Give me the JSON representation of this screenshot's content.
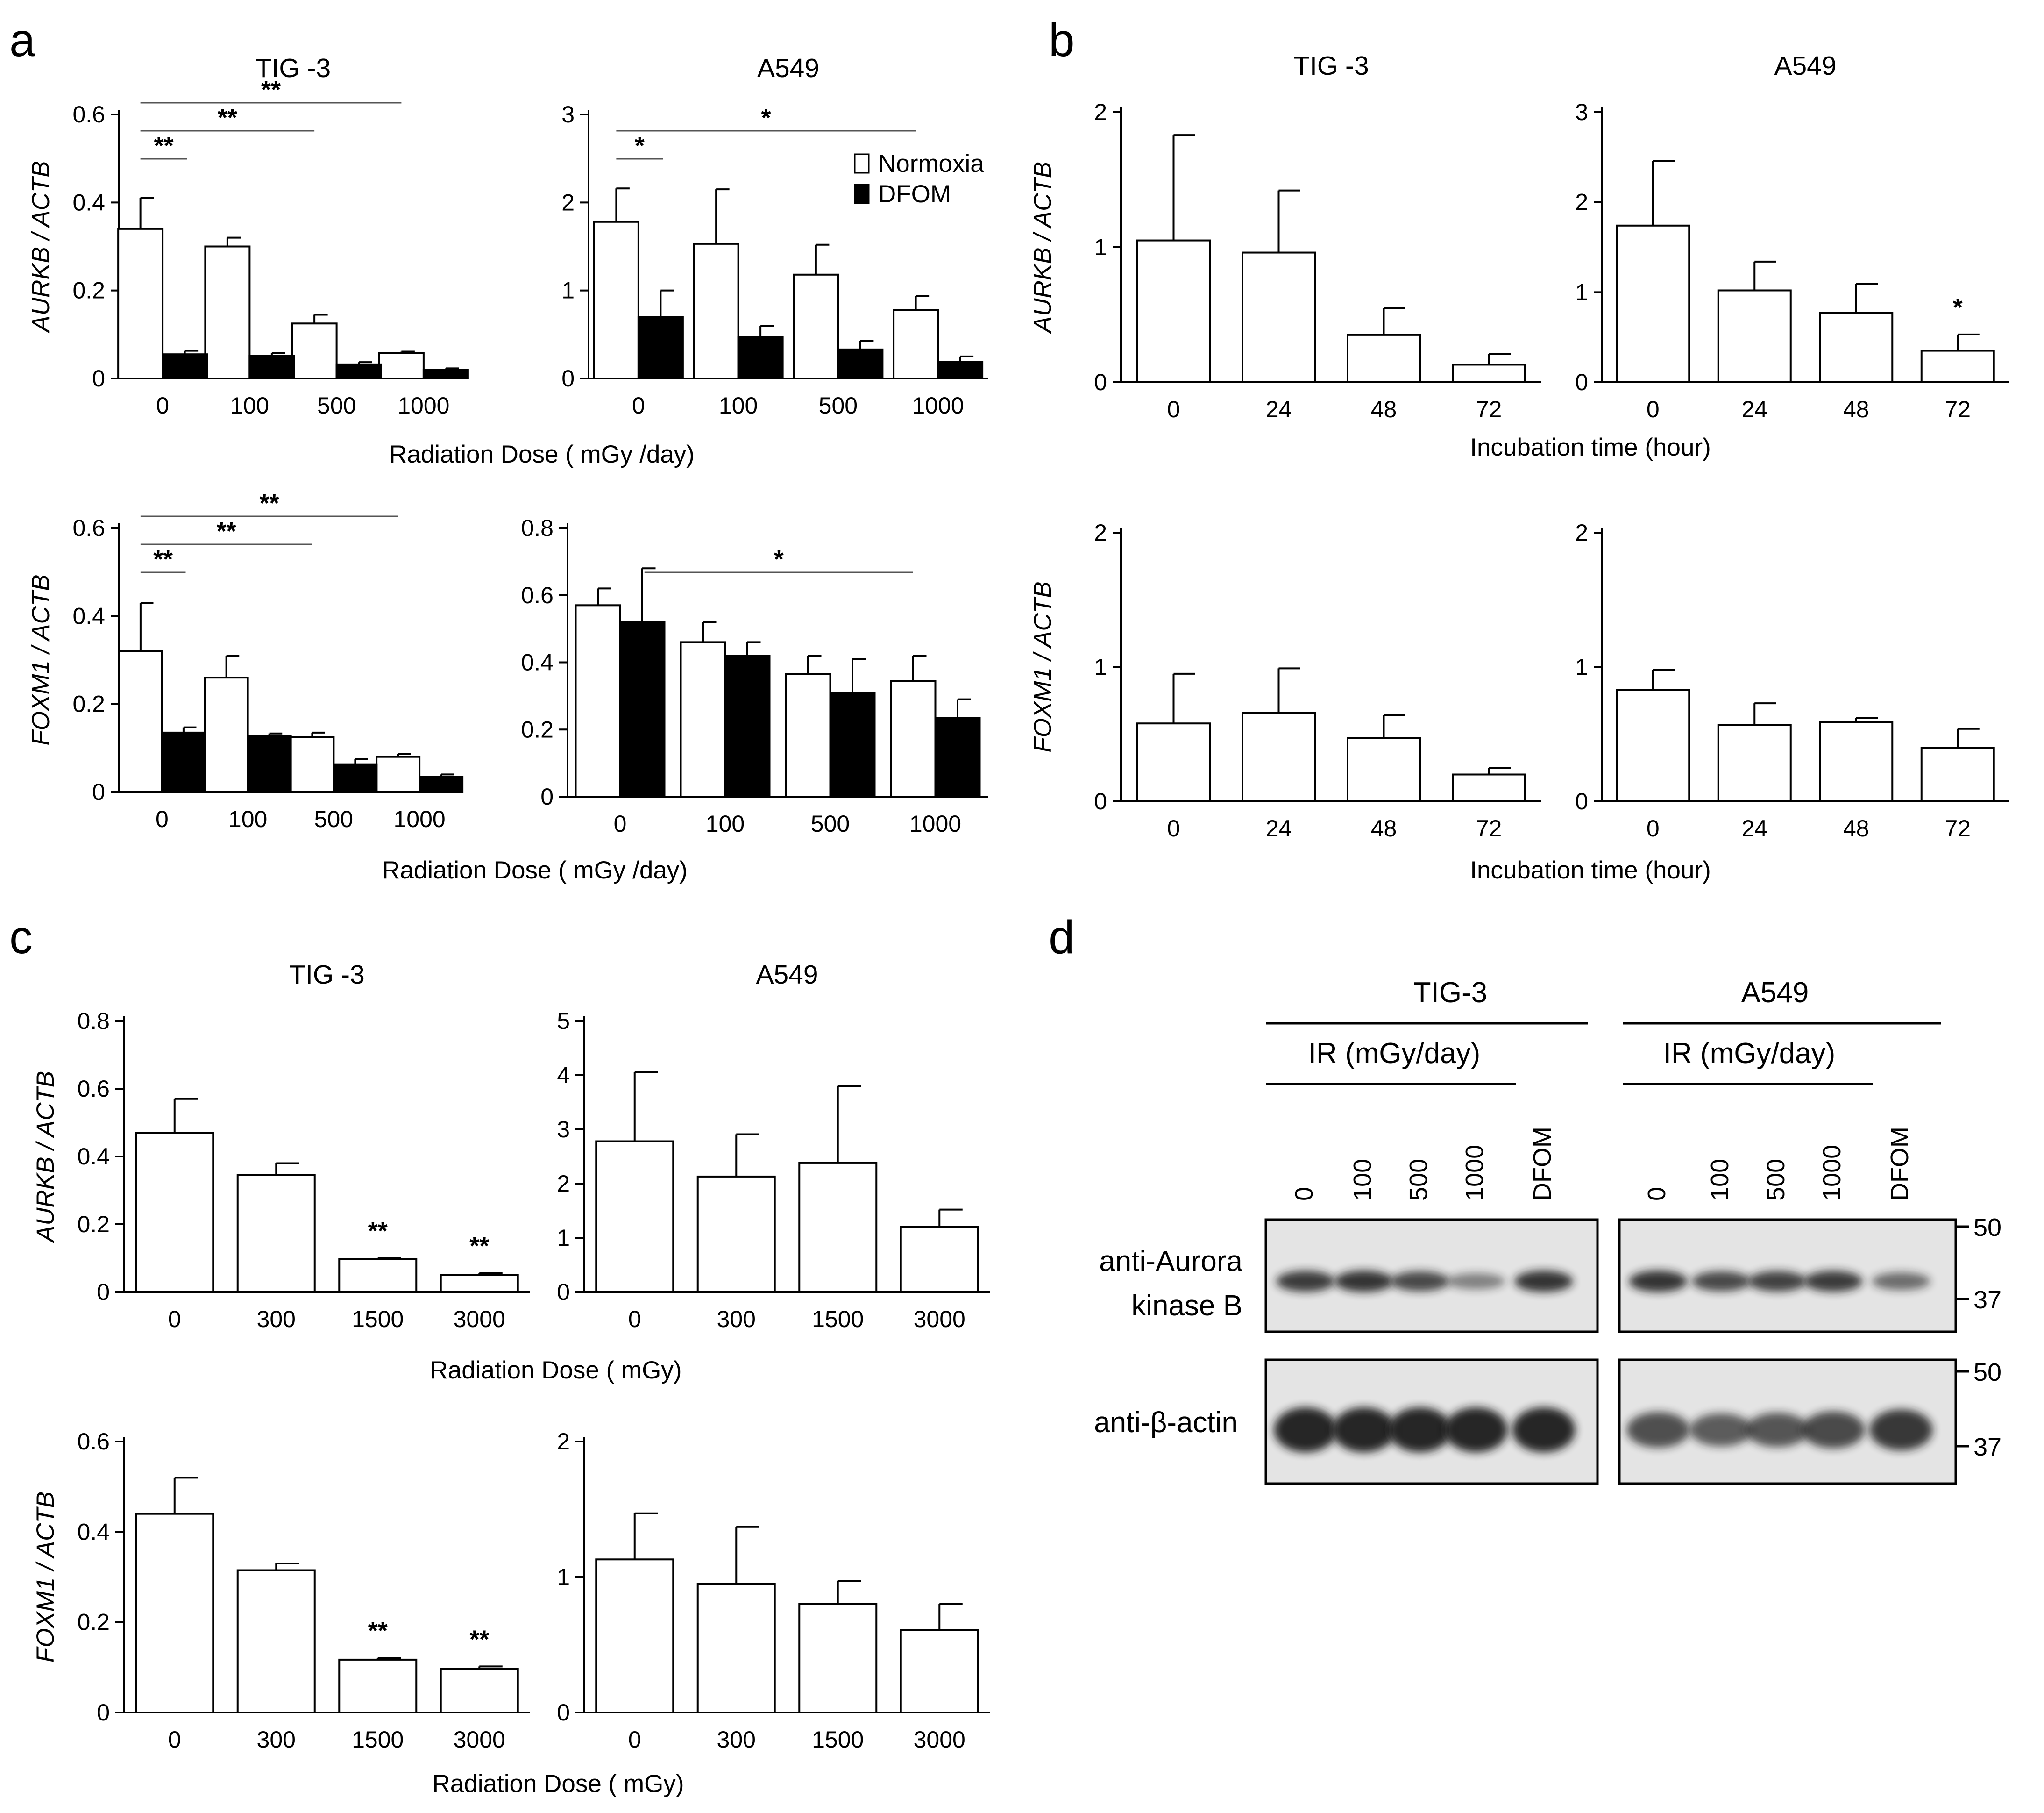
{
  "panel_labels": [
    "a",
    "b",
    "c",
    "d"
  ],
  "legend": {
    "normoxia": "Normoxia",
    "dfom": "DFOM"
  },
  "colors": {
    "normoxia": "#ffffff",
    "dfom": "#000000",
    "axis": "#000000",
    "sig_line": "#555555",
    "blot_bg": "#e4e4e4",
    "band": "#1a1a1a"
  },
  "chart_data": [
    {
      "id": "a-aurkb-tig3",
      "panel": "a",
      "type": "bar",
      "title": "TIG -3",
      "ylabel": "AURKB / ACTB",
      "xlabel": "",
      "ylim": [
        0,
        0.6
      ],
      "yticks": [
        "0",
        "0.2",
        "0.4",
        "0.6"
      ],
      "categories": [
        "0",
        "100",
        "500",
        "1000"
      ],
      "series": [
        {
          "name": "Normoxia",
          "values": [
            0.34,
            0.3,
            0.125,
            0.058
          ],
          "errors": [
            0.07,
            0.02,
            0.02,
            0.003
          ]
        },
        {
          "name": "DFOM",
          "values": [
            0.055,
            0.052,
            0.032,
            0.02
          ],
          "errors": [
            0.008,
            0.006,
            0.005,
            0.003
          ]
        }
      ],
      "significance": [
        {
          "from": 0,
          "to": 0.3,
          "label": "**"
        },
        {
          "from": 0,
          "to": 2,
          "label": "**"
        },
        {
          "from": 0,
          "to": 3,
          "label": "**"
        }
      ]
    },
    {
      "id": "a-aurkb-a549",
      "panel": "a",
      "type": "bar",
      "title": "A549",
      "ylabel": "",
      "xlabel": "",
      "ylim": [
        0,
        3
      ],
      "yticks": [
        "0",
        "1",
        "2",
        "3"
      ],
      "categories": [
        "0",
        "100",
        "500",
        "1000"
      ],
      "series": [
        {
          "name": "Normoxia",
          "values": [
            1.78,
            1.53,
            1.18,
            0.78
          ],
          "errors": [
            0.38,
            0.62,
            0.34,
            0.16
          ]
        },
        {
          "name": "DFOM",
          "values": [
            0.7,
            0.47,
            0.33,
            0.19
          ],
          "errors": [
            0.3,
            0.13,
            0.1,
            0.06
          ]
        }
      ],
      "significance": [
        {
          "from": 0,
          "to": 0.3,
          "label": "*"
        },
        {
          "from": 0,
          "to": 3,
          "label": "*"
        }
      ],
      "legend": true
    },
    {
      "id": "a-foxm1-tig3",
      "panel": "a",
      "type": "bar",
      "title": "",
      "ylabel": "FOXM1 / ACTB",
      "xlabel": "",
      "ylim": [
        0,
        0.6
      ],
      "yticks": [
        "0",
        "0.2",
        "0.4",
        "0.6"
      ],
      "categories": [
        "0",
        "100",
        "500",
        "1000"
      ],
      "series": [
        {
          "name": "Normoxia",
          "values": [
            0.32,
            0.26,
            0.125,
            0.08
          ],
          "errors": [
            0.11,
            0.05,
            0.01,
            0.007
          ]
        },
        {
          "name": "DFOM",
          "values": [
            0.135,
            0.128,
            0.063,
            0.035
          ],
          "errors": [
            0.012,
            0.005,
            0.012,
            0.005
          ]
        }
      ],
      "significance": [
        {
          "from": 0,
          "to": 0.3,
          "label": "**"
        },
        {
          "from": 0,
          "to": 2,
          "label": "**"
        },
        {
          "from": 0,
          "to": 3,
          "label": "**"
        }
      ]
    },
    {
      "id": "a-foxm1-a549",
      "panel": "a",
      "type": "bar",
      "title": "",
      "ylabel": "",
      "xlabel": "",
      "ylim": [
        0,
        0.8
      ],
      "yticks": [
        "0",
        "0.2",
        "0.4",
        "0.6",
        "0.8"
      ],
      "categories": [
        "0",
        "100",
        "500",
        "1000"
      ],
      "series": [
        {
          "name": "Normoxia",
          "values": [
            0.57,
            0.46,
            0.365,
            0.345
          ],
          "errors": [
            0.05,
            0.06,
            0.055,
            0.075
          ]
        },
        {
          "name": "DFOM",
          "values": [
            0.52,
            0.42,
            0.31,
            0.235
          ],
          "errors": [
            0.16,
            0.04,
            0.1,
            0.055
          ]
        }
      ],
      "significance": [
        {
          "from": 0.3,
          "to": 3,
          "label": "*"
        }
      ]
    },
    {
      "id": "b-aurkb-tig3",
      "panel": "b",
      "type": "bar",
      "title": "TIG -3",
      "ylabel": "AURKB / ACTB",
      "xlabel": "",
      "ylim": [
        0,
        2
      ],
      "yticks": [
        "0",
        "1",
        "2"
      ],
      "categories": [
        "0",
        "24",
        "48",
        "72"
      ],
      "series": [
        {
          "name": "",
          "values": [
            1.05,
            0.96,
            0.35,
            0.13
          ],
          "errors": [
            0.78,
            0.46,
            0.2,
            0.08
          ]
        }
      ]
    },
    {
      "id": "b-aurkb-a549",
      "panel": "b",
      "type": "bar",
      "title": "A549",
      "ylabel": "",
      "xlabel": "",
      "ylim": [
        0,
        3
      ],
      "yticks": [
        "0",
        "1",
        "2",
        "3"
      ],
      "categories": [
        "0",
        "24",
        "48",
        "72"
      ],
      "series": [
        {
          "name": "",
          "values": [
            1.74,
            1.02,
            0.77,
            0.35
          ],
          "errors": [
            0.72,
            0.32,
            0.32,
            0.18
          ]
        }
      ],
      "marks": [
        {
          "index": 3,
          "label": "*"
        }
      ]
    },
    {
      "id": "b-foxm1-tig3",
      "panel": "b",
      "type": "bar",
      "title": "",
      "ylabel": "FOXM1 / ACTB",
      "xlabel": "",
      "ylim": [
        0,
        2
      ],
      "yticks": [
        "0",
        "1",
        "2"
      ],
      "categories": [
        "0",
        "24",
        "48",
        "72"
      ],
      "series": [
        {
          "name": "",
          "values": [
            0.58,
            0.66,
            0.47,
            0.2
          ],
          "errors": [
            0.37,
            0.33,
            0.17,
            0.05
          ]
        }
      ]
    },
    {
      "id": "b-foxm1-a549",
      "panel": "b",
      "type": "bar",
      "title": "",
      "ylabel": "",
      "xlabel": "",
      "ylim": [
        0,
        2
      ],
      "yticks": [
        "0",
        "1",
        "2"
      ],
      "categories": [
        "0",
        "24",
        "48",
        "72"
      ],
      "series": [
        {
          "name": "",
          "values": [
            0.83,
            0.57,
            0.59,
            0.4
          ],
          "errors": [
            0.15,
            0.16,
            0.03,
            0.14
          ]
        }
      ]
    },
    {
      "id": "c-aurkb-tig3",
      "panel": "c",
      "type": "bar",
      "title": "TIG -3",
      "ylabel": "AURKB / ACTB",
      "xlabel": "",
      "ylim": [
        0,
        0.8
      ],
      "yticks": [
        "0",
        "0.2",
        "0.4",
        "0.6",
        "0.8"
      ],
      "categories": [
        "0",
        "300",
        "1500",
        "3000"
      ],
      "series": [
        {
          "name": "",
          "values": [
            0.47,
            0.345,
            0.097,
            0.05
          ],
          "errors": [
            0.1,
            0.035,
            0.003,
            0.006
          ]
        }
      ],
      "marks": [
        {
          "index": 2,
          "label": "**"
        },
        {
          "index": 3,
          "label": "**"
        }
      ]
    },
    {
      "id": "c-aurkb-a549",
      "panel": "c",
      "type": "bar",
      "title": "A549",
      "ylabel": "",
      "xlabel": "",
      "ylim": [
        0,
        5
      ],
      "yticks": [
        "0",
        "1",
        "2",
        "3",
        "4",
        "5"
      ],
      "categories": [
        "0",
        "300",
        "1500",
        "3000"
      ],
      "series": [
        {
          "name": "",
          "values": [
            2.78,
            2.13,
            2.38,
            1.2
          ],
          "errors": [
            1.28,
            0.78,
            1.42,
            0.32
          ]
        }
      ]
    },
    {
      "id": "c-foxm1-tig3",
      "panel": "c",
      "type": "bar",
      "title": "",
      "ylabel": "FOXM1 / ACTB",
      "xlabel": "",
      "ylim": [
        0,
        0.6
      ],
      "yticks": [
        "0",
        "0.2",
        "0.4",
        "0.6"
      ],
      "categories": [
        "0",
        "300",
        "1500",
        "3000"
      ],
      "series": [
        {
          "name": "",
          "values": [
            0.44,
            0.315,
            0.117,
            0.097
          ],
          "errors": [
            0.08,
            0.015,
            0.004,
            0.005
          ]
        }
      ],
      "marks": [
        {
          "index": 2,
          "label": "**"
        },
        {
          "index": 3,
          "label": "**"
        }
      ]
    },
    {
      "id": "c-foxm1-a549",
      "panel": "c",
      "type": "bar",
      "title": "",
      "ylabel": "",
      "xlabel": "",
      "ylim": [
        0,
        2
      ],
      "yticks": [
        "0",
        "1",
        "2"
      ],
      "categories": [
        "0",
        "300",
        "1500",
        "3000"
      ],
      "series": [
        {
          "name": "",
          "values": [
            1.13,
            0.95,
            0.8,
            0.61
          ],
          "errors": [
            0.34,
            0.42,
            0.17,
            0.19
          ]
        }
      ]
    }
  ],
  "xlabels": {
    "a_top": "Radiation Dose ( mGy /day)",
    "a_bottom": "Radiation Dose ( mGy /day)",
    "b_top": "Incubation time (hour)",
    "b_bottom": "Incubation time (hour)",
    "c_top": "Radiation Dose ( mGy)",
    "c_bottom": "Radiation Dose ( mGy)"
  },
  "western": {
    "groups": [
      {
        "name": "TIG-3",
        "ir_label": "IR (mGy/day)",
        "lanes": [
          "0",
          "100",
          "500",
          "1000",
          "DFOM"
        ]
      },
      {
        "name": "A549",
        "ir_label": "IR (mGy/day)",
        "lanes": [
          "0",
          "100",
          "500",
          "1000",
          "DFOM"
        ]
      }
    ],
    "rows": [
      {
        "label": [
          "anti-Aurora",
          "kinase B"
        ],
        "markers": [
          "50",
          "37"
        ]
      },
      {
        "label": [
          "anti-β-actin"
        ],
        "markers": [
          "50",
          "37"
        ]
      }
    ],
    "aurora_intensity": [
      [
        0.85,
        0.9,
        0.75,
        0.35,
        0.9
      ],
      [
        0.9,
        0.75,
        0.8,
        0.85,
        0.5
      ]
    ],
    "actin_intensity": [
      [
        1.0,
        1.0,
        1.0,
        1.0,
        1.0
      ],
      [
        0.65,
        0.55,
        0.6,
        0.7,
        0.85
      ]
    ]
  }
}
